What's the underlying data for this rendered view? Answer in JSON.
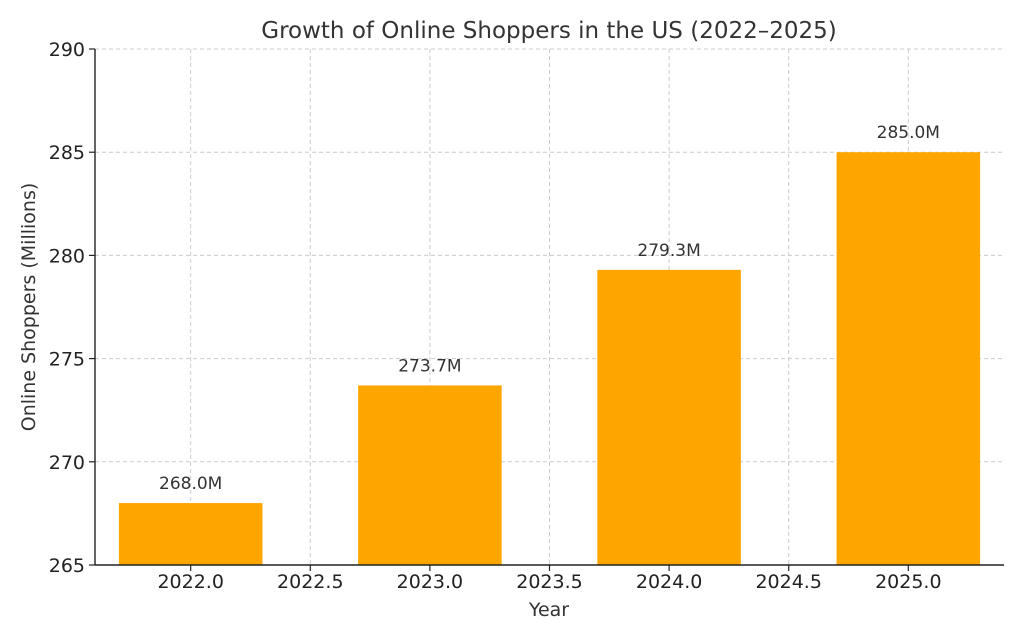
{
  "chart_data": {
    "type": "bar",
    "title": "Growth of Online Shoppers in the US (2022–2025)",
    "xlabel": "Year",
    "ylabel": "Online Shoppers (Millions)",
    "categories": [
      "2022",
      "2023",
      "2024",
      "2025"
    ],
    "x": [
      2022,
      2023,
      2024,
      2025
    ],
    "values": [
      268.0,
      273.7,
      279.3,
      285.0
    ],
    "data_labels": [
      "268.0M",
      "273.7M",
      "279.3M",
      "285.0M"
    ],
    "bar_width": 0.6,
    "ylim": [
      265,
      290
    ],
    "xlim": [
      2021.6,
      2025.4
    ],
    "yticks": [
      265,
      270,
      275,
      280,
      285,
      290
    ],
    "ytick_labels": [
      "265",
      "270",
      "275",
      "280",
      "285",
      "290"
    ],
    "xticks": [
      2022.0,
      2022.5,
      2023.0,
      2023.5,
      2024.0,
      2024.5,
      2025.0
    ],
    "xtick_labels": [
      "2022.0",
      "2022.5",
      "2023.0",
      "2023.5",
      "2024.0",
      "2024.5",
      "2025.0"
    ],
    "grid": true,
    "bar_color": "#FFA500"
  }
}
